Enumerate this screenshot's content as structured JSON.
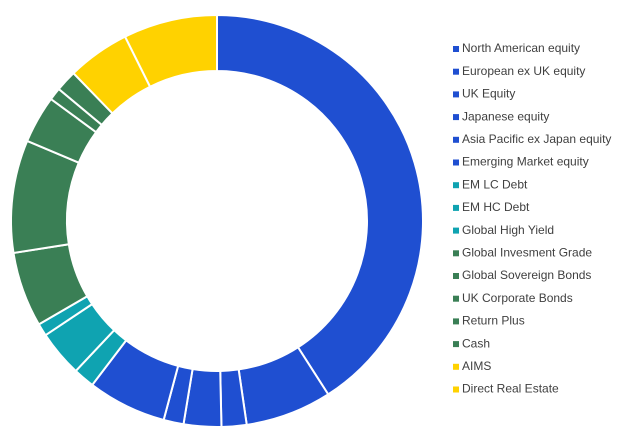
{
  "chart_data": {
    "type": "donut",
    "categories": [
      "North American equity",
      "European ex UK equity",
      "UK Equity",
      "Japanese equity",
      "Asia Pacific ex Japan equity",
      "Emerging Market equity",
      "EM LC Debt",
      "EM HC Debt",
      "Global High Yield",
      "Global Invesment Grade",
      "Global Sovereign Bonds",
      "UK Corporate Bonds",
      "Return Plus",
      "Cash",
      "AIMS",
      "Direct Real Estate"
    ],
    "values": [
      41.7,
      6.9,
      2.0,
      3.0,
      1.6,
      6.3,
      1.7,
      3.7,
      1.0,
      6.0,
      9.0,
      3.8,
      1.0,
      1.7,
      5.0,
      7.5
    ],
    "colors": [
      "#1f4fd1",
      "#1f4fd1",
      "#1f4fd1",
      "#1f4fd1",
      "#1f4fd1",
      "#1f4fd1",
      "#0fa3b1",
      "#0fa3b1",
      "#0fa3b1",
      "#3a7f55",
      "#3a7f55",
      "#3a7f55",
      "#3a7f55",
      "#3a7f55",
      "#ffd200",
      "#ffd200"
    ],
    "legend": "right"
  }
}
